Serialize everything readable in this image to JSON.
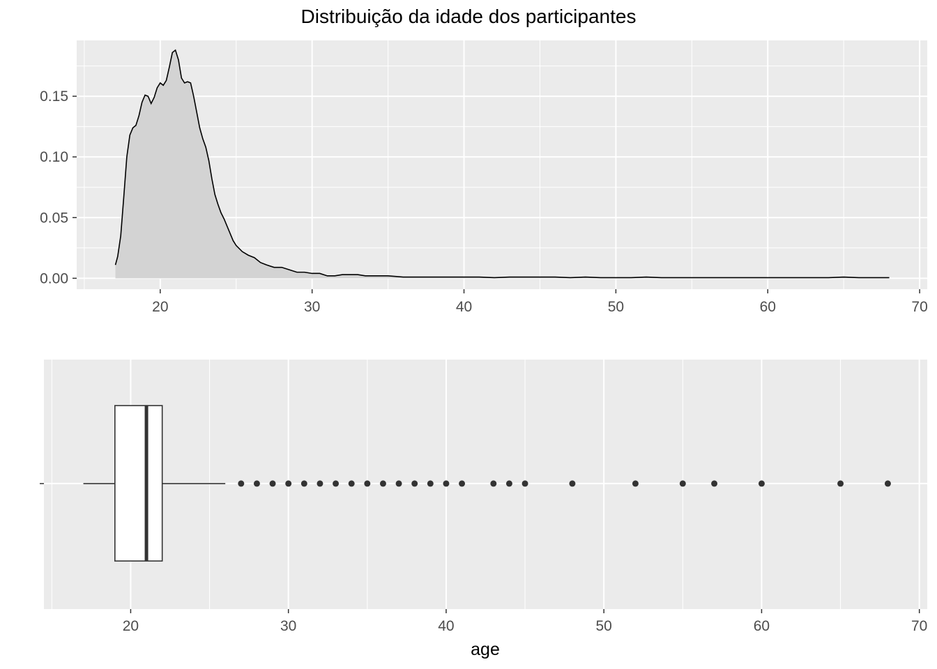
{
  "figure": {
    "title": "Distribuição da idade dos participantes"
  },
  "colors": {
    "panel_bg": "#ebebeb",
    "grid": "#ffffff",
    "density_fill": "#d3d3d3",
    "density_line": "#000000",
    "box_fill": "#ffffff",
    "box_line": "#333333",
    "tick": "#333333",
    "tick_label": "#4d4d4d"
  },
  "chart_data": [
    {
      "type": "area",
      "title": "Distribuição da idade dos participantes",
      "xlabel": "",
      "ylabel": "",
      "xlim": [
        14.5,
        70.5
      ],
      "ylim": [
        -0.009,
        0.196
      ],
      "x_ticks": [
        20,
        30,
        40,
        50,
        60,
        70
      ],
      "x_tick_labels": [
        "20",
        "30",
        "40",
        "50",
        "60",
        "70"
      ],
      "y_ticks": [
        0.0,
        0.05,
        0.1,
        0.15
      ],
      "y_tick_labels": [
        "0.00",
        "0.05",
        "0.10",
        "0.15"
      ],
      "grid": true,
      "series": [
        {
          "x": [
            17.05,
            17.2,
            17.4,
            17.6,
            17.8,
            18,
            18.2,
            18.4,
            18.6,
            18.8,
            19,
            19.2,
            19.4,
            19.6,
            19.8,
            20,
            20.2,
            20.4,
            20.6,
            20.8,
            21,
            21.2,
            21.4,
            21.6,
            21.8,
            22,
            22.2,
            22.4,
            22.6,
            22.8,
            23,
            23.2,
            23.4,
            23.6,
            23.8,
            24,
            24.2,
            24.4,
            24.6,
            24.8,
            25,
            25.4,
            25.8,
            26.2,
            26.6,
            27,
            27.5,
            28,
            28.5,
            29,
            29.5,
            30,
            30.5,
            31,
            31.5,
            32,
            32.5,
            33,
            33.5,
            34,
            35,
            36,
            37,
            38,
            39,
            40,
            41,
            42,
            43,
            44,
            45,
            46,
            47,
            48,
            49,
            50,
            51,
            52,
            53,
            54,
            55,
            56,
            57,
            58,
            59,
            60,
            61,
            62,
            63,
            64,
            65,
            66,
            67,
            68
          ],
          "values": [
            0.011,
            0.018,
            0.035,
            0.067,
            0.1,
            0.118,
            0.124,
            0.126,
            0.134,
            0.145,
            0.151,
            0.15,
            0.144,
            0.149,
            0.157,
            0.161,
            0.159,
            0.163,
            0.174,
            0.186,
            0.188,
            0.18,
            0.165,
            0.161,
            0.162,
            0.161,
            0.15,
            0.137,
            0.124,
            0.115,
            0.108,
            0.097,
            0.082,
            0.069,
            0.061,
            0.054,
            0.049,
            0.043,
            0.037,
            0.031,
            0.027,
            0.022,
            0.019,
            0.017,
            0.013,
            0.011,
            0.009,
            0.009,
            0.007,
            0.005,
            0.005,
            0.004,
            0.004,
            0.002,
            0.002,
            0.003,
            0.003,
            0.003,
            0.002,
            0.002,
            0.002,
            0.001,
            0.001,
            0.001,
            0.001,
            0.001,
            0.001,
            0.0005,
            0.001,
            0.001,
            0.001,
            0.001,
            0.0005,
            0.001,
            0.0005,
            0.0005,
            0.0005,
            0.001,
            0.0005,
            0.0005,
            0.0005,
            0.0005,
            0.0005,
            0.0005,
            0.0005,
            0.0005,
            0.0005,
            0.0005,
            0.0005,
            0.0005,
            0.001,
            0.0005,
            0.0005,
            0.0005
          ]
        }
      ]
    },
    {
      "type": "box",
      "xlabel": "age",
      "ylabel": "",
      "xlim": [
        14.5,
        70.5
      ],
      "x_ticks": [
        20,
        30,
        40,
        50,
        60,
        70
      ],
      "x_tick_labels": [
        "20",
        "30",
        "40",
        "50",
        "60",
        "70"
      ],
      "grid": true,
      "box": {
        "whisker_low": 17,
        "q1": 19,
        "median": 21,
        "q3": 22,
        "whisker_high": 26
      },
      "outliers": [
        27,
        28,
        29,
        30,
        31,
        32,
        33,
        34,
        35,
        36,
        37,
        38,
        39,
        40,
        41,
        43,
        44,
        45,
        48,
        52,
        55,
        57,
        60,
        65,
        68
      ]
    }
  ]
}
